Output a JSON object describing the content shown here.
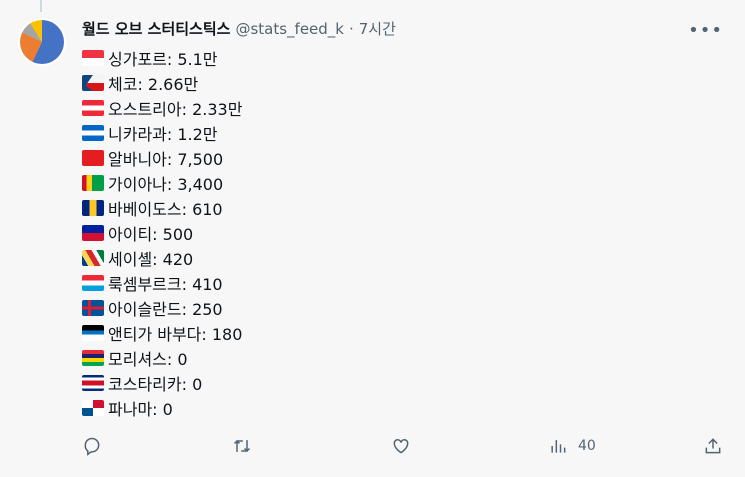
{
  "tweet": {
    "author_name": "월드 오브 스터티스틱스",
    "handle": "@stats_feed_k",
    "separator": "·",
    "time": "7시간",
    "items": [
      {
        "flag": "sg",
        "text": "싱가포르: 5.1만"
      },
      {
        "flag": "cz",
        "text": "체코: 2.66만"
      },
      {
        "flag": "at",
        "text": "오스트리아: 2.33만"
      },
      {
        "flag": "ni",
        "text": "니카라과: 1.2만"
      },
      {
        "flag": "al",
        "text": "알바니아: 7,500"
      },
      {
        "flag": "gy",
        "text": "가이아나: 3,400"
      },
      {
        "flag": "bb",
        "text": "바베이도스: 610"
      },
      {
        "flag": "ht",
        "text": "아이티: 500"
      },
      {
        "flag": "sc",
        "text": "세이셸: 420"
      },
      {
        "flag": "lu",
        "text": "룩셈부르크: 410"
      },
      {
        "flag": "is",
        "text": "아이슬란드: 250"
      },
      {
        "flag": "ag",
        "text": "앤티가 바부다: 180"
      },
      {
        "flag": "mu",
        "text": "모리셔스: 0"
      },
      {
        "flag": "cr",
        "text": "코스타리카: 0"
      },
      {
        "flag": "pa",
        "text": "파나마: 0"
      }
    ],
    "views": "40"
  },
  "icons": {
    "more": "more-icon",
    "reply": "reply-icon",
    "retweet": "retweet-icon",
    "like": "heart-icon",
    "views": "views-icon",
    "share": "share-icon"
  }
}
